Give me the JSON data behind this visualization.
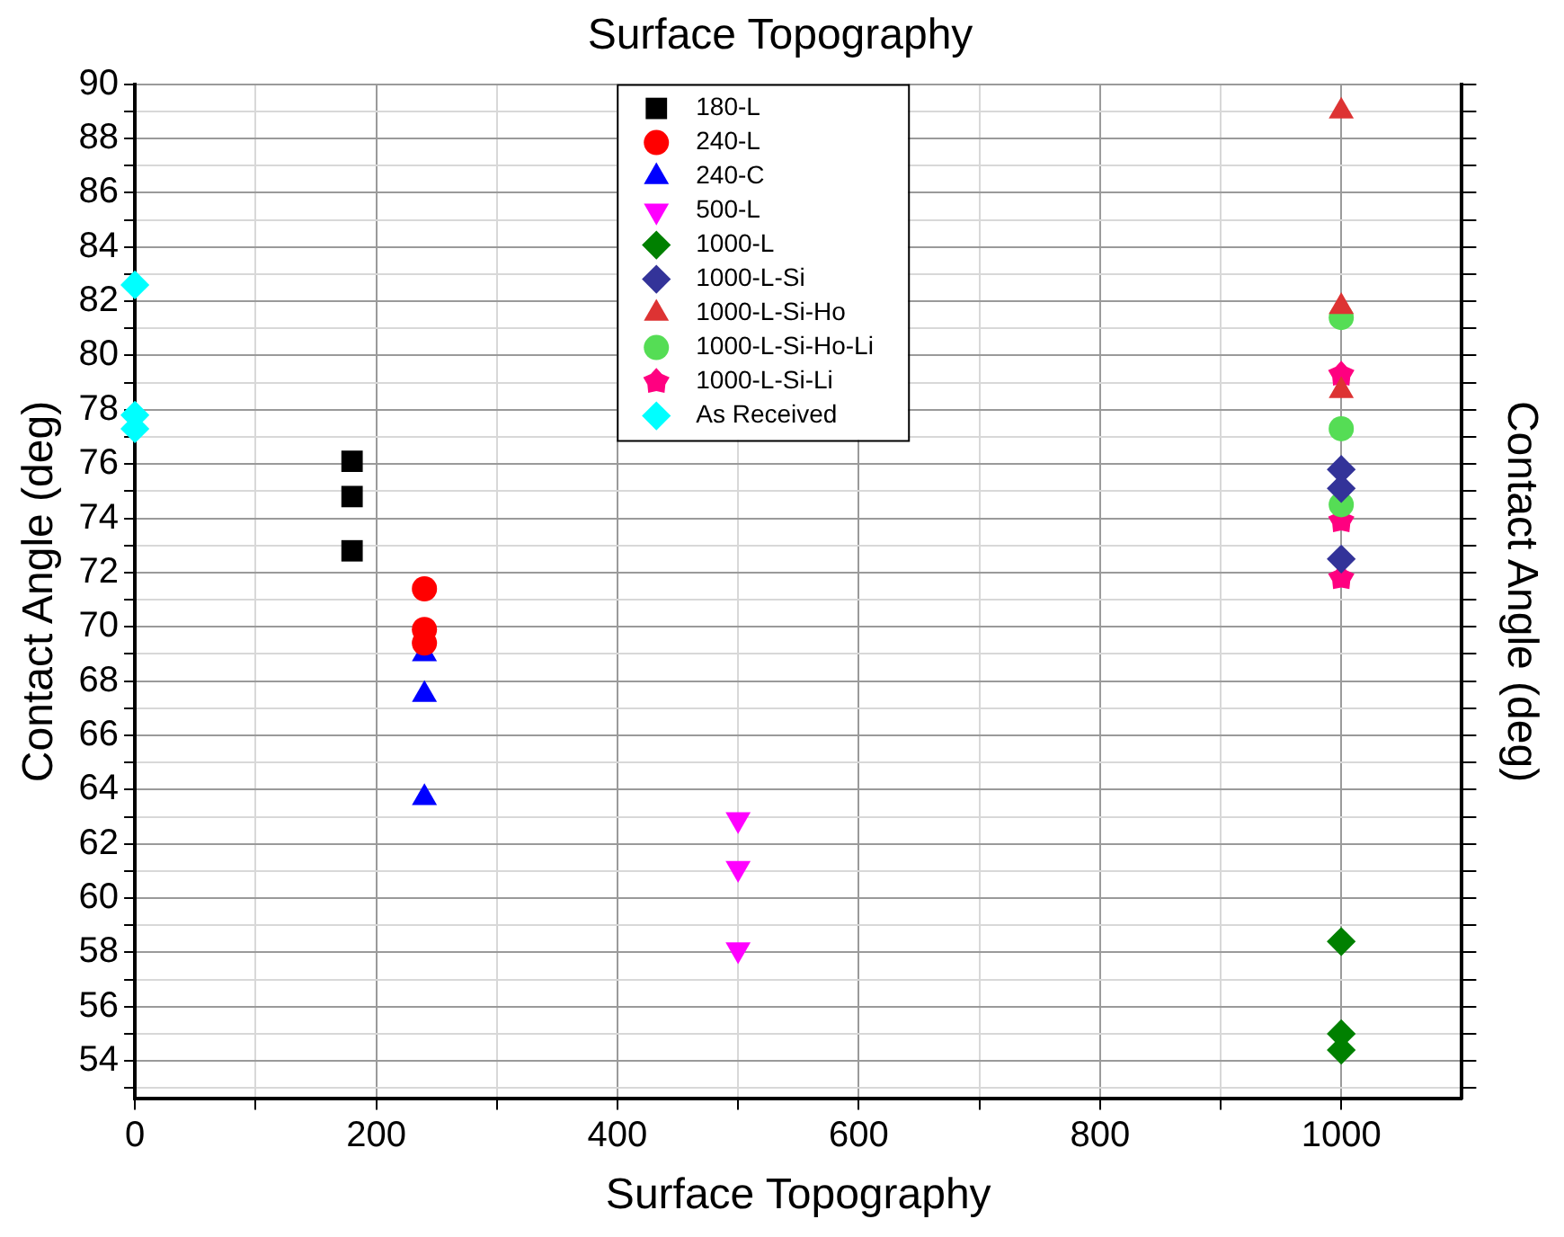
{
  "chart_data": {
    "type": "scatter",
    "title": "Surface Topography",
    "xlabel": "Surface Topography",
    "ylabel": "Contact Angle (deg)",
    "y2label": "Contact Angle (deg)",
    "xlim": [
      0,
      1100
    ],
    "xticks": [
      0,
      {
        "value": 100,
        "label": null
      },
      200,
      {
        "value": 300,
        "label": null
      },
      400,
      {
        "value": 500,
        "label": null
      },
      600,
      {
        "value": 700,
        "label": null
      },
      800,
      {
        "value": 900,
        "label": null
      },
      1000
    ],
    "ylim": [
      52.6,
      90
    ],
    "yticks": [
      {
        "value": 53,
        "label": null
      },
      54,
      {
        "value": 55,
        "label": null
      },
      56,
      {
        "value": 57,
        "label": null
      },
      58,
      {
        "value": 59,
        "label": null
      },
      60,
      {
        "value": 61,
        "label": null
      },
      62,
      {
        "value": 63,
        "label": null
      },
      64,
      {
        "value": 65,
        "label": null
      },
      66,
      {
        "value": 67,
        "label": null
      },
      68,
      {
        "value": 69,
        "label": null
      },
      70,
      {
        "value": 71,
        "label": null
      },
      72,
      {
        "value": 73,
        "label": null
      },
      74,
      {
        "value": 75,
        "label": null
      },
      76,
      {
        "value": 77,
        "label": null
      },
      78,
      {
        "value": 79,
        "label": null
      },
      80,
      {
        "value": 81,
        "label": null
      },
      82,
      {
        "value": 83,
        "label": null
      },
      84,
      {
        "value": 85,
        "label": null
      },
      86,
      {
        "value": 87,
        "label": null
      },
      88,
      {
        "value": 89,
        "label": null
      },
      90
    ],
    "grid": true,
    "legend": "top",
    "series": [
      {
        "name": "180-L",
        "color": "#000000",
        "marker": "square",
        "x": [
          180,
          180,
          180
        ],
        "values": [
          76.1,
          74.8,
          72.8
        ]
      },
      {
        "name": "240-L",
        "color": "#ff0000",
        "marker": "circle",
        "x": [
          240,
          240,
          240
        ],
        "values": [
          71.4,
          69.9,
          69.4
        ]
      },
      {
        "name": "240-C",
        "color": "#0000ff",
        "marker": "triangle",
        "x": [
          240,
          240,
          240
        ],
        "values": [
          69.0,
          67.5,
          63.7
        ]
      },
      {
        "name": "500-L",
        "color": "#ff00ff",
        "marker": "triangle-down",
        "x": [
          500,
          500,
          500
        ],
        "values": [
          62.9,
          61.1,
          58.1
        ]
      },
      {
        "name": "1000-L",
        "color": "#008000",
        "marker": "diamond",
        "x": [
          1000,
          1000,
          1000
        ],
        "values": [
          58.4,
          55.0,
          54.4
        ]
      },
      {
        "name": "1000-L-Si",
        "color": "#333399",
        "marker": "diamond",
        "x": [
          1000,
          1000,
          1000
        ],
        "values": [
          75.8,
          75.1,
          72.5
        ]
      },
      {
        "name": "1000-L-Si-Ho",
        "color": "#dd3333",
        "marker": "triangle",
        "x": [
          1000,
          1000,
          1000
        ],
        "values": [
          89.0,
          81.8,
          78.7
        ]
      },
      {
        "name": "1000-L-Si-Ho-Li",
        "color": "#55dd55",
        "marker": "circle",
        "x": [
          1000,
          1000,
          1000
        ],
        "values": [
          81.4,
          77.3,
          74.5
        ]
      },
      {
        "name": "1000-L-Si-Li",
        "color": "#ff0080",
        "marker": "star",
        "x": [
          1000,
          1000,
          1000
        ],
        "values": [
          79.3,
          73.9,
          71.8
        ]
      },
      {
        "name": "As Received",
        "color": "#00ffff",
        "marker": "diamond",
        "x": [
          0,
          0,
          0
        ],
        "values": [
          82.6,
          77.8,
          77.3
        ]
      }
    ]
  }
}
